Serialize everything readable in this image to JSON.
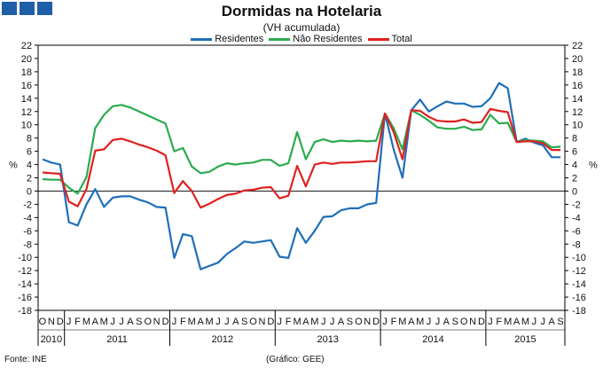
{
  "header": {
    "title": "Dormidas na Hotelaria",
    "subtitle": "(VH acumulada)"
  },
  "footer": {
    "source": "Fonte: INE",
    "credit": "(Gráfico: GEE)"
  },
  "chart_data": {
    "type": "line",
    "title": "Dormidas na Hotelaria",
    "subtitle": "(VH acumulada)",
    "ylabel": "%",
    "ylim": [
      -18,
      22
    ],
    "ytick_step": 2,
    "grid": false,
    "legend": "top-center",
    "x": [
      "O",
      "N",
      "D",
      "J",
      "F",
      "M",
      "A",
      "M",
      "J",
      "J",
      "A",
      "S",
      "O",
      "N",
      "D",
      "J",
      "F",
      "M",
      "A",
      "M",
      "J",
      "J",
      "A",
      "S",
      "O",
      "N",
      "D",
      "J",
      "F",
      "M",
      "A",
      "M",
      "J",
      "J",
      "A",
      "S",
      "O",
      "N",
      "D",
      "J",
      "F",
      "M",
      "A",
      "M",
      "J",
      "J",
      "A",
      "S",
      "O",
      "N",
      "D",
      "J",
      "F",
      "M",
      "A",
      "M",
      "J",
      "J",
      "A",
      "S"
    ],
    "years": [
      {
        "label": "2010",
        "start": 0,
        "end": 2
      },
      {
        "label": "2011",
        "start": 3,
        "end": 14
      },
      {
        "label": "2012",
        "start": 15,
        "end": 26
      },
      {
        "label": "2013",
        "start": 27,
        "end": 38
      },
      {
        "label": "2014",
        "start": 39,
        "end": 50
      },
      {
        "label": "2015",
        "start": 51,
        "end": 59
      }
    ],
    "series": [
      {
        "name": "Residentes",
        "color": "#1f6fb8",
        "values": [
          4.8,
          4.3,
          4.0,
          -4.7,
          -5.2,
          -2.0,
          0.3,
          -2.4,
          -1.0,
          -0.8,
          -0.8,
          -1.3,
          -1.7,
          -2.4,
          -2.5,
          -10.1,
          -6.5,
          -6.8,
          -11.8,
          -11.3,
          -10.8,
          -9.5,
          -8.6,
          -7.6,
          -7.8,
          -7.6,
          -7.4,
          -9.9,
          -10.1,
          -5.6,
          -7.8,
          -6.0,
          -3.9,
          -3.8,
          -2.9,
          -2.6,
          -2.6,
          -2.0,
          -1.8,
          11.7,
          6.3,
          2.0,
          12.2,
          13.8,
          12.0,
          12.8,
          13.5,
          13.2,
          13.2,
          12.7,
          12.8,
          14.0,
          16.3,
          15.5,
          7.4,
          7.9,
          7.3,
          6.9,
          5.1,
          5.1
        ]
      },
      {
        "name": "Não Residentes",
        "color": "#2bab4f",
        "values": [
          1.8,
          1.7,
          1.7,
          0.5,
          -0.4,
          2.1,
          9.5,
          11.5,
          12.8,
          13.0,
          12.6,
          12.0,
          11.4,
          10.8,
          10.2,
          6.0,
          6.5,
          3.7,
          2.7,
          2.9,
          3.7,
          4.2,
          4.0,
          4.2,
          4.3,
          4.7,
          4.7,
          3.8,
          4.2,
          8.9,
          4.8,
          7.4,
          7.8,
          7.4,
          7.6,
          7.5,
          7.6,
          7.5,
          7.6,
          11.7,
          9.5,
          6.3,
          12.2,
          11.5,
          10.6,
          9.6,
          9.4,
          9.4,
          9.7,
          9.2,
          9.3,
          11.5,
          10.2,
          10.3,
          7.4,
          7.7,
          7.6,
          7.5,
          6.6,
          6.7
        ]
      },
      {
        "name": "Total",
        "color": "#e02020",
        "values": [
          2.8,
          2.7,
          2.6,
          -1.6,
          -2.3,
          0.3,
          6.1,
          6.3,
          7.7,
          7.9,
          7.5,
          7.0,
          6.6,
          6.1,
          5.4,
          -0.3,
          1.5,
          0.0,
          -2.5,
          -1.9,
          -1.2,
          -0.6,
          -0.4,
          0.1,
          0.2,
          0.5,
          0.6,
          -1.1,
          -0.7,
          3.8,
          0.7,
          4.0,
          4.3,
          4.1,
          4.3,
          4.3,
          4.4,
          4.5,
          4.5,
          11.7,
          8.9,
          4.8,
          12.2,
          12.1,
          11.2,
          10.6,
          10.5,
          10.5,
          10.8,
          10.3,
          10.4,
          12.4,
          12.1,
          11.9,
          7.4,
          7.5,
          7.5,
          7.2,
          6.2,
          6.2
        ]
      }
    ]
  }
}
